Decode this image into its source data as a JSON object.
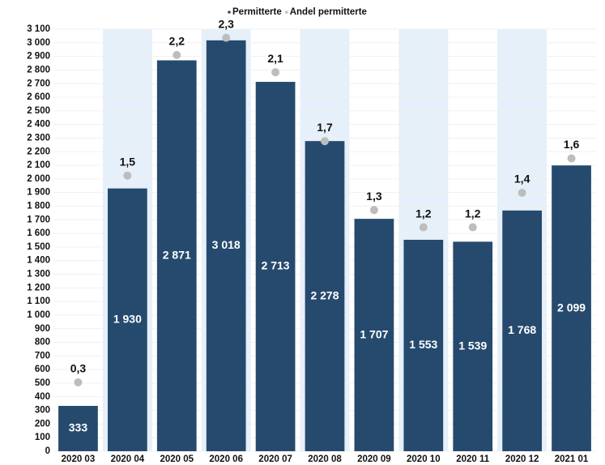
{
  "chart_data": {
    "type": "bar",
    "categories": [
      "2020 03",
      "2020 04",
      "2020 05",
      "2020 06",
      "2020 07",
      "2020 08",
      "2020 09",
      "2020 10",
      "2020 11",
      "2020 12",
      "2021 01"
    ],
    "series": [
      {
        "name": "Permitterte",
        "color": "#264a6e",
        "values": [
          333,
          1930,
          2871,
          3018,
          2713,
          2278,
          1707,
          1553,
          1539,
          1768,
          2099
        ],
        "value_labels": [
          "333",
          "1 930",
          "2 871",
          "3 018",
          "2 713",
          "2 278",
          "1 707",
          "1 553",
          "1 539",
          "1 768",
          "2 099"
        ]
      },
      {
        "name": "Andel permitterte",
        "color": "#bdbdbd",
        "axis": "y2",
        "mark": "dot",
        "values": [
          0.3,
          1.5,
          2.2,
          2.3,
          2.1,
          1.7,
          1.3,
          1.2,
          1.2,
          1.4,
          1.6
        ],
        "value_labels": [
          "0,3",
          "1,5",
          "2,2",
          "2,3",
          "2,1",
          "1,7",
          "1,3",
          "1,2",
          "1,2",
          "1,4",
          "1,6"
        ]
      }
    ],
    "ylim": [
      0,
      3100
    ],
    "yticks": [
      0,
      100,
      200,
      300,
      400,
      500,
      600,
      700,
      800,
      900,
      {
        "value": 1000,
        "label": "1 000"
      },
      {
        "value": 1100,
        "label": "1 100"
      },
      {
        "value": 1200,
        "label": "1 200"
      },
      {
        "value": 1300,
        "label": "1 300"
      },
      {
        "value": 1400,
        "label": "1 400"
      },
      {
        "value": 1500,
        "label": "1 500"
      },
      {
        "value": 1600,
        "label": "1 600"
      },
      {
        "value": 1700,
        "label": "1 700"
      },
      {
        "value": 1800,
        "label": "1 800"
      },
      {
        "value": 1900,
        "label": "1 900"
      },
      {
        "value": 2000,
        "label": "2 000"
      },
      {
        "value": 2100,
        "label": "2 100"
      },
      {
        "value": 2200,
        "label": "2 200"
      },
      {
        "value": 2300,
        "label": "2 300"
      },
      {
        "value": 2400,
        "label": "2 400"
      },
      {
        "value": 2500,
        "label": "2 500"
      },
      {
        "value": 2600,
        "label": "2 600"
      },
      {
        "value": 2700,
        "label": "2 700"
      },
      {
        "value": 2800,
        "label": "2 800"
      },
      {
        "value": 2900,
        "label": "2 900"
      },
      {
        "value": 3000,
        "label": "3 000"
      },
      {
        "value": 3100,
        "label": "3 100"
      }
    ],
    "y2lim": [
      -0.1,
      2.35
    ],
    "grid": true,
    "legend": "top",
    "band_shading": "#e6f0fa"
  }
}
